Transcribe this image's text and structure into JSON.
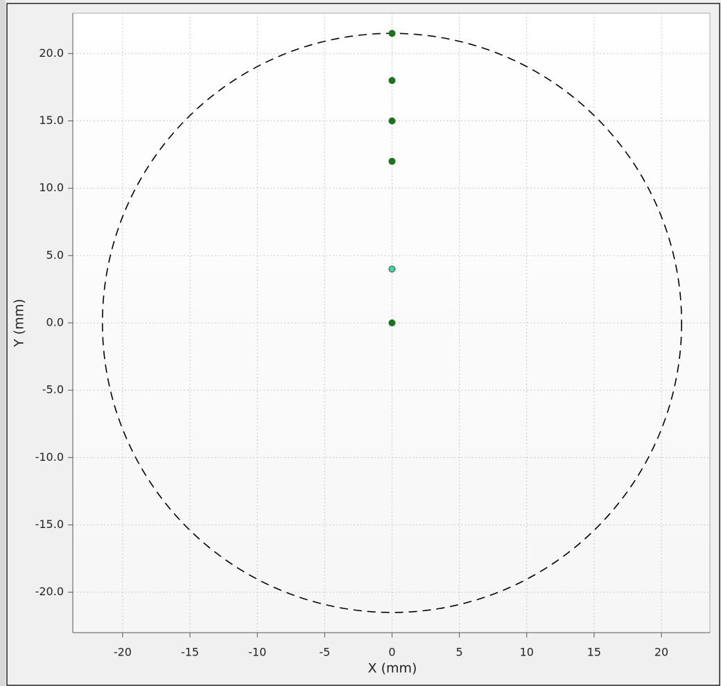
{
  "chart_data": {
    "type": "scatter",
    "x_label": "X (mm)",
    "y_label": "Y (mm)",
    "x": [
      0,
      0,
      0,
      0,
      0,
      0
    ],
    "values": [
      0,
      4,
      12,
      15,
      18,
      21.5
    ],
    "point_colors": [
      "#0e7d0e",
      "#3fd4a8",
      "#0e7d0e",
      "#0e7d0e",
      "#0e7d0e",
      "#0e7d0e"
    ],
    "boundary_circle": {
      "radius": 21.5,
      "color": "#000000",
      "dashed": true
    },
    "xlim": [
      -23.7,
      23.6
    ],
    "ylim": [
      -23,
      23
    ],
    "xticks": [
      -20,
      -15,
      -10,
      -5,
      0,
      5,
      10,
      15,
      20
    ],
    "yticks": [
      {
        "value": -20,
        "label": "-20.0"
      },
      {
        "value": -15,
        "label": "-15.0"
      },
      {
        "value": -10,
        "label": "-10.0"
      },
      {
        "value": -5,
        "label": "-5.0"
      },
      {
        "value": 0,
        "label": "0.0"
      },
      {
        "value": 5,
        "label": "5.0"
      },
      {
        "value": 10,
        "label": "10.0"
      },
      {
        "value": 15,
        "label": "15.0"
      },
      {
        "value": 20,
        "label": "20.0"
      }
    ],
    "grid": true
  }
}
